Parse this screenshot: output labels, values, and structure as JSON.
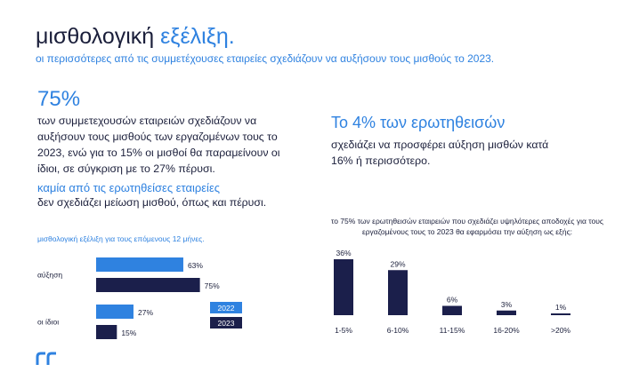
{
  "header": {
    "title_main": "μισθολογική",
    "title_accent": "εξέλιξη.",
    "subtitle": "οι περισσότερες από τις συμμετέχουσες εταιρείες σχεδιάζουν να αυξήσουν τους μισθούς το 2023."
  },
  "left": {
    "stat": "75%",
    "desc": "των συμμετεχουσών εταιρειών σχεδιάζουν να αυξήσουν τους μισθούς των εργαζομένων τους το 2023, ενώ για το 15% οι μισθοί θα παραμείνουν οι ίδιοι, σε σύγκριση με το 27% πέρυσι.",
    "accent_line": "καμία από τις ερωτηθείσες εταιρείες",
    "accent_desc": "δεν σχεδιάζει μείωση μισθού, όπως και πέρυσι."
  },
  "right": {
    "head": "Το 4% των ερωτηθεισών",
    "desc": "σχεδιάζει να προσφέρει αύξηση μισθών κατά 16% ή περισσότερο."
  },
  "colors": {
    "light_blue": "#2f82e0",
    "navy": "#1b1f4b",
    "text": "#1b1f3b"
  },
  "chart_data": [
    {
      "type": "bar",
      "orientation": "horizontal",
      "title": "μισθολογική εξέλιξη για τους επόμενους 12 μήνες.",
      "categories": [
        "αύξηση",
        "οι ίδιοι"
      ],
      "series": [
        {
          "name": "2022",
          "values": [
            63,
            27
          ],
          "value_labels": [
            "63%",
            "27%"
          ],
          "color": "#2f82e0"
        },
        {
          "name": "2023",
          "values": [
            75,
            15
          ],
          "value_labels": [
            "75%",
            "15%"
          ],
          "color": "#1b1f4b"
        }
      ],
      "xlim": [
        0,
        80
      ],
      "legend": "right",
      "grid": false
    },
    {
      "type": "bar",
      "orientation": "vertical",
      "title": "το 75% των ερωτηθεισών εταιρειών που σχεδιάζει υψηλότερες αποδοχές για τους εργαζομένους τους το 2023 θα εφαρμόσει την αύξηση ως εξής:",
      "categories": [
        "1-5%",
        "6-10%",
        "11-15%",
        "16-20%",
        ">20%"
      ],
      "values": [
        36,
        29,
        6,
        3,
        1
      ],
      "value_labels": [
        "36%",
        "29%",
        "6%",
        "3%",
        "1%"
      ],
      "ylim": [
        0,
        40
      ],
      "color": "#1b1f4b",
      "grid": false
    }
  ]
}
